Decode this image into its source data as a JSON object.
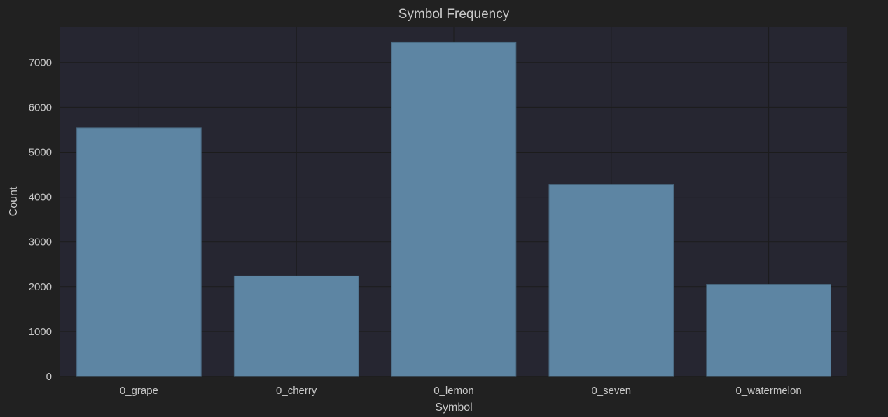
{
  "chart_data": {
    "type": "bar",
    "title": "Symbol Frequency",
    "xlabel": "Symbol",
    "ylabel": "Count",
    "categories": [
      "0_grape",
      "0_cherry",
      "0_lemon",
      "0_seven",
      "0_watermelon"
    ],
    "values": [
      5540,
      2240,
      7450,
      4280,
      2050
    ],
    "ylim": [
      0,
      7800
    ],
    "yticks": [
      0,
      1000,
      2000,
      3000,
      4000,
      5000,
      6000,
      7000
    ],
    "grid": true,
    "colors": {
      "background": "#212121",
      "plot_area": "#262631",
      "bar": "#5d85a3",
      "text": "#c8c8c8"
    }
  }
}
